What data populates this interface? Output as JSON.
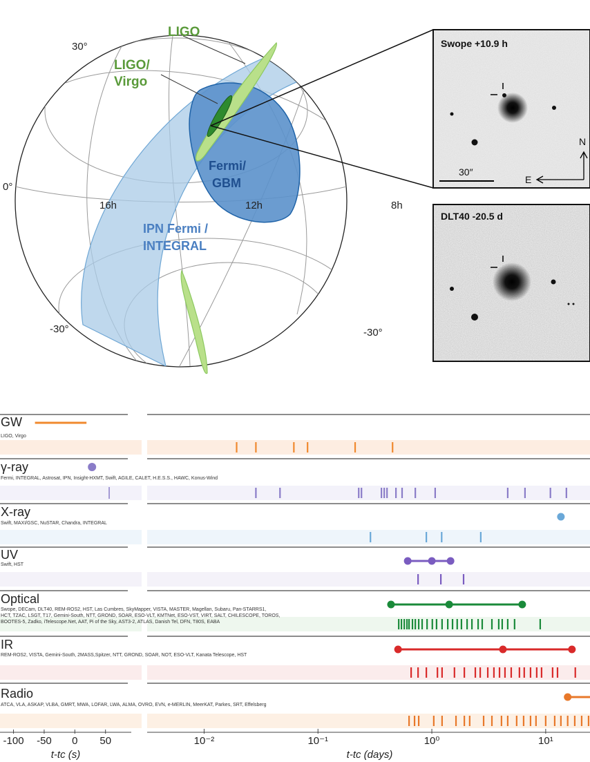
{
  "sky_map": {
    "grid_labels": [
      "30°",
      "0°",
      "-30°",
      "16h",
      "12h",
      "8h",
      "-30°"
    ],
    "ligo": "LIGO",
    "ligo_virgo": [
      "LIGO/",
      "Virgo"
    ],
    "fermi_gbm": [
      "Fermi/",
      "GBM"
    ],
    "ipn": [
      "IPN Fermi /",
      "INTEGRAL"
    ]
  },
  "insets": [
    {
      "title": "Swope +10.9 h",
      "scale": "30″",
      "north": "N",
      "east": "E"
    },
    {
      "title": "DLT40 -20.5 d"
    }
  ],
  "chart_data": {
    "type": "timeline",
    "xlim_seconds": [
      -122,
      92
    ],
    "xticks_seconds": [
      -100,
      -50,
      0,
      50
    ],
    "xlabel_seconds": "t-tc (s)",
    "log_x": true,
    "xlim_days": [
      0.00316,
      24.5
    ],
    "xticks_days": [
      {
        "value": 0.01,
        "label": "10⁻²"
      },
      {
        "value": 0.1,
        "label": "10⁻¹"
      },
      {
        "value": 1,
        "label": "10⁰"
      },
      {
        "value": 10,
        "label": "10¹"
      }
    ],
    "xlabel_days": "t-tc (days)",
    "rows": [
      {
        "name": "GW",
        "instruments": [
          "LIGO, Virgo"
        ],
        "color": "#f0892e",
        "band_color": "#fdede1",
        "left_segment": [
          -65,
          19
        ],
        "observations": [
          0.0193,
          0.0285,
          0.0614,
          0.081,
          0.212,
          0.452
        ]
      },
      {
        "name": "γ-ray",
        "instruments": [
          "Fermi, INTEGRAL, Astrosat, IPN, Insight-HXMT, Swift, AGILE, CALET, H.E.S.S., HAWC, Konus-Wind"
        ],
        "color": "#8a7cc8",
        "band_color": "#f3f2fa",
        "left_points": [
          28
        ],
        "left_ticks": [
          56
        ],
        "observations": [
          0.0285,
          0.0464,
          0.228,
          0.241,
          0.361,
          0.382,
          0.404,
          0.484,
          0.548,
          0.716,
          1.07,
          4.64,
          6.58,
          11.0,
          15.2
        ]
      },
      {
        "name": "X-ray",
        "instruments": [
          "Swift, MAXI/GSC, NuSTAR, Chandra, INTEGRAL"
        ],
        "color": "#6aa8d8",
        "band_color": "#eef5fb",
        "points": [
          13.6
        ],
        "observations": [
          0.289,
          0.895,
          1.22,
          2.69
        ]
      },
      {
        "name": "UV",
        "instruments": [
          "Swift, HST"
        ],
        "color": "#7a5cc0",
        "band_color": "#f4f2f9",
        "points": [
          0.614,
          1.0,
          1.46
        ],
        "observations": [
          0.757,
          1.2,
          1.9
        ]
      },
      {
        "name": "Optical",
        "instruments": [
          "Swope, DECam, DLT40, REM-ROS2, HST, Las Cumbres, SkyMapper, VISTA, MASTER, Magellan, Subaru, Pan-STARRS1,",
          "HCT, TZAC, LSGT, T17, Gemini-South, NTT, GROND, SOAR, ESO-VLT, KMTNet, ESO-VST, VIRT, SALT, CHILESCOPE, TOROS,",
          "BOOTES-5, Zadko, iTelescope.Net, AAT, Pi of the Sky, AST3-2, ATLAS, Danish Tel, DFN, T80S, EABA"
        ],
        "color": "#1a8a3a",
        "band_color": "#eef7ee",
        "points": [
          0.438,
          1.42,
          6.22
        ],
        "observations": [
          0.512,
          0.541,
          0.573,
          0.605,
          0.631,
          0.676,
          0.716,
          0.767,
          0.822,
          0.908,
          1.01,
          1.1,
          1.23,
          1.38,
          1.52,
          1.67,
          1.82,
          2.04,
          2.25,
          2.55,
          2.77,
          3.37,
          3.87,
          4.15,
          4.64,
          5.33,
          8.95
        ]
      },
      {
        "name": "IR",
        "instruments": [
          "REM-ROS2, VISTA, Gemini-South, 2MASS,Spitzer, NTT, GROND, SOAR, NOT, ESO-VLT, Kanata Telescope, HST"
        ],
        "color": "#d92a2a",
        "band_color": "#fbecec",
        "points": [
          0.505,
          4.21,
          17.0
        ],
        "observations": [
          0.658,
          0.757,
          0.895,
          1.12,
          1.23,
          1.58,
          1.93,
          2.41,
          2.66,
          3.1,
          3.51,
          3.93,
          4.39,
          4.98,
          5.88,
          6.48,
          7.36,
          8.34,
          9.2,
          11.5,
          12.7,
          18.2
        ]
      },
      {
        "name": "Radio",
        "instruments": [
          "ATCA, VLA, ASKAP, VLBA, GMRT, MWA, LOFAR, LWA, ALMA, OVRO, EVN, e-MERLIN, MeerKAT, Parkes, SRT, Effelsberg"
        ],
        "color": "#e8782a",
        "band_color": "#fdf0e4",
        "points": [
          15.6
        ],
        "open_ended": true,
        "observations": [
          0.631,
          0.705,
          0.767,
          1.04,
          1.23,
          1.63,
          1.93,
          2.15,
          2.85,
          3.37,
          4.09,
          4.64,
          5.56,
          6.4,
          7.36,
          8.22,
          10.0,
          12.0,
          13.6,
          15.6,
          18.0,
          20.7,
          23.8
        ]
      }
    ]
  }
}
